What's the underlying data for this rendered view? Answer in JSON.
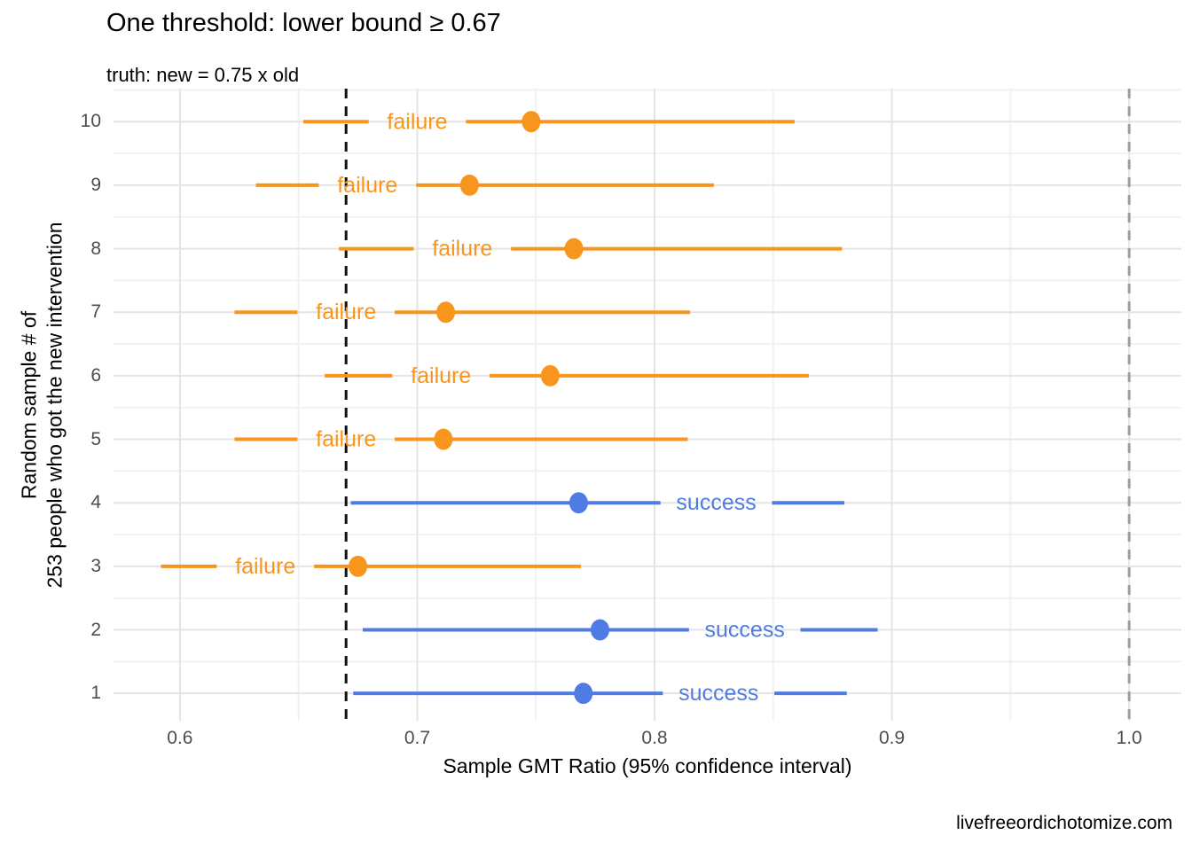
{
  "title": "One threshold: lower bound ≥ 0.67",
  "subtitle": "truth: new = 0.75 x old",
  "caption": "livefreeordichotomize.com",
  "x_axis_title": "Sample GMT Ratio (95% confidence interval)",
  "y_axis_title": "Random sample # of\n253 people who got the new intervention",
  "colors": {
    "failure": "#F8951D",
    "success": "#4F7BE5",
    "threshold_line": "#111111",
    "reference_line": "#9E9E9E",
    "grid_major": "#E4E4E4",
    "grid_minor": "#F1F1F1",
    "tick_label": "#4D4D4D"
  },
  "chart_data": {
    "type": "scatter",
    "subtype": "forest-plot-with-95pct-confidence-intervals",
    "title": "One threshold: lower bound ≥ 0.67",
    "subtitle": "truth: new = 0.75 x old",
    "xlabel": "Sample GMT Ratio (95% confidence interval)",
    "ylabel": "Random sample # of\n253 people who got the new intervention",
    "caption": "livefreeordichotomize.com",
    "xlim": [
      0.572,
      1.022
    ],
    "ylim": [
      0.57,
      10.52
    ],
    "x_ticks": [
      0.6,
      0.7,
      0.8,
      0.9,
      1.0
    ],
    "x_tick_labels": [
      "0.6",
      "0.7",
      "0.8",
      "0.9",
      "1.0"
    ],
    "x_minor_ticks": [
      0.65,
      0.75,
      0.85,
      0.95
    ],
    "grid": true,
    "threshold_x": 0.67,
    "reference_x": 1.0,
    "legend_position": "none",
    "rows": [
      {
        "sample": 10,
        "estimate": 0.748,
        "ci_low": 0.652,
        "ci_high": 0.859,
        "status": "failure",
        "label_x": 0.7
      },
      {
        "sample": 9,
        "estimate": 0.722,
        "ci_low": 0.632,
        "ci_high": 0.825,
        "status": "failure",
        "label_x": 0.679
      },
      {
        "sample": 8,
        "estimate": 0.766,
        "ci_low": 0.667,
        "ci_high": 0.879,
        "status": "failure",
        "label_x": 0.719
      },
      {
        "sample": 7,
        "estimate": 0.712,
        "ci_low": 0.623,
        "ci_high": 0.815,
        "status": "failure",
        "label_x": 0.67
      },
      {
        "sample": 6,
        "estimate": 0.756,
        "ci_low": 0.661,
        "ci_high": 0.865,
        "status": "failure",
        "label_x": 0.71
      },
      {
        "sample": 5,
        "estimate": 0.711,
        "ci_low": 0.623,
        "ci_high": 0.814,
        "status": "failure",
        "label_x": 0.67
      },
      {
        "sample": 4,
        "estimate": 0.768,
        "ci_low": 0.672,
        "ci_high": 0.88,
        "status": "success",
        "label_x": 0.826
      },
      {
        "sample": 3,
        "estimate": 0.675,
        "ci_low": 0.592,
        "ci_high": 0.769,
        "status": "failure",
        "label_x": 0.636
      },
      {
        "sample": 2,
        "estimate": 0.777,
        "ci_low": 0.677,
        "ci_high": 0.894,
        "status": "success",
        "label_x": 0.838
      },
      {
        "sample": 1,
        "estimate": 0.77,
        "ci_low": 0.673,
        "ci_high": 0.881,
        "status": "success",
        "label_x": 0.827
      }
    ]
  }
}
